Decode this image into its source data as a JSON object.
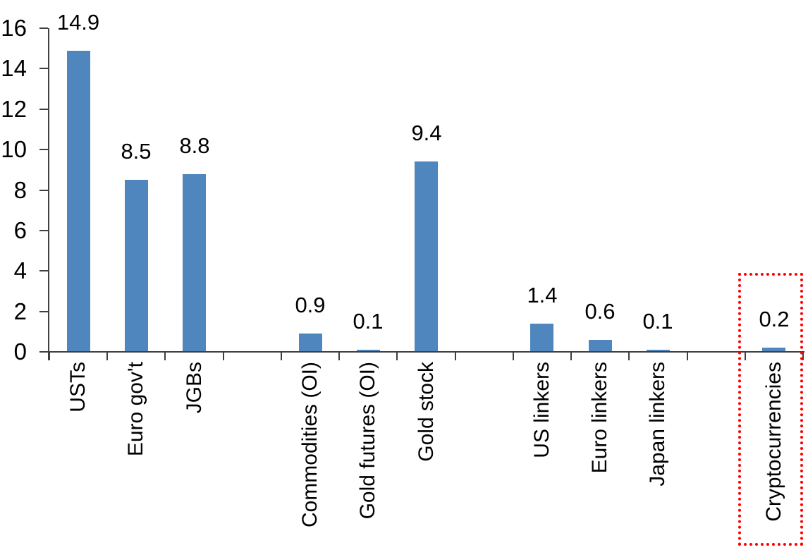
{
  "chart_data": {
    "type": "bar",
    "title": "",
    "xlabel": "",
    "ylabel": "",
    "categories": [
      "USTs",
      "Euro gov't",
      "JGBs",
      "Commodities (OI)",
      "Gold futures (OI)",
      "Gold stock",
      "US linkers",
      "Euro linkers",
      "Japan linkers",
      "Cryptocurrencies"
    ],
    "values": [
      14.9,
      8.5,
      8.8,
      0.9,
      0.1,
      9.4,
      1.4,
      0.6,
      0.1,
      0.2
    ],
    "data_labels": [
      "14.9",
      "8.5",
      "8.8",
      "0.9",
      "0.1",
      "9.4",
      "1.4",
      "0.6",
      "0.1",
      "0.2"
    ],
    "slots": [
      0,
      1,
      2,
      4,
      5,
      6,
      8,
      9,
      10,
      12
    ],
    "total_slots": 13,
    "y_ticks": [
      0,
      2,
      4,
      6,
      8,
      10,
      12,
      14,
      16
    ],
    "ylim": [
      0,
      16
    ],
    "grid": false,
    "legend": null,
    "bar_color": "#4E86BD",
    "axis_color": "#3F3F3F",
    "label_color": "#000000",
    "highlight": {
      "category": "Cryptocurrencies",
      "value": 0.2,
      "style": "red-dotted-box",
      "color": "#FF0000"
    }
  }
}
